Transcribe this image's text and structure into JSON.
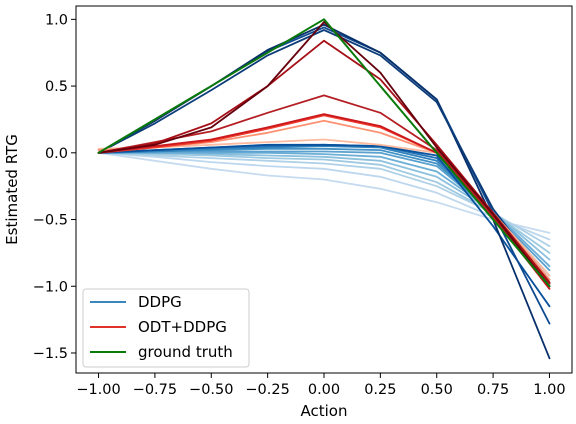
{
  "chart_data": {
    "type": "line",
    "xlabel": "Action",
    "ylabel": "Estimated RTG",
    "xlim": [
      -1.1,
      1.1
    ],
    "ylim": [
      -1.65,
      1.1
    ],
    "xticks": [
      -1.0,
      -0.75,
      -0.5,
      -0.25,
      0.0,
      0.25,
      0.5,
      0.75,
      1.0
    ],
    "xtick_labels": [
      "−1.00",
      "−0.75",
      "−0.50",
      "−0.25",
      "0.00",
      "0.25",
      "0.50",
      "0.75",
      "1.00"
    ],
    "yticks": [
      -1.5,
      -1.0,
      -0.5,
      0.0,
      0.5,
      1.0
    ],
    "ytick_labels": [
      "−1.5",
      "−1.0",
      "−0.5",
      "0.0",
      "0.5",
      "1.0"
    ],
    "grid": false,
    "legend": {
      "position": "lower-left",
      "entries": [
        {
          "label": "DDPG",
          "color": "#3a87c0"
        },
        {
          "label": "ODT+DDPG",
          "color": "#e0322a"
        },
        {
          "label": "ground truth",
          "color": "#0a7a0a"
        }
      ]
    },
    "series": [
      {
        "group": "DDPG",
        "color": "#c6dbef",
        "x": [
          -1.0,
          -0.75,
          -0.5,
          -0.25,
          0.0,
          0.25,
          0.5,
          0.75,
          1.0
        ],
        "y": [
          0.0,
          -0.06,
          -0.12,
          -0.17,
          -0.2,
          -0.27,
          -0.37,
          -0.5,
          -0.6
        ]
      },
      {
        "group": "DDPG",
        "color": "#bdd7ee",
        "x": [
          -1.0,
          -0.75,
          -0.5,
          -0.25,
          0.0,
          0.25,
          0.5,
          0.75,
          1.0
        ],
        "y": [
          0.0,
          -0.03,
          -0.07,
          -0.1,
          -0.12,
          -0.18,
          -0.3,
          -0.48,
          -0.65
        ]
      },
      {
        "group": "DDPG",
        "color": "#afd1e7",
        "x": [
          -1.0,
          -0.75,
          -0.5,
          -0.25,
          0.0,
          0.25,
          0.5,
          0.75,
          1.0
        ],
        "y": [
          0.0,
          -0.02,
          -0.04,
          -0.06,
          -0.08,
          -0.12,
          -0.25,
          -0.45,
          -0.7
        ]
      },
      {
        "group": "DDPG",
        "color": "#9ecae1",
        "x": [
          -1.0,
          -0.75,
          -0.5,
          -0.25,
          0.0,
          0.25,
          0.5,
          0.75,
          1.0
        ],
        "y": [
          0.0,
          -0.01,
          -0.02,
          -0.04,
          -0.05,
          -0.09,
          -0.22,
          -0.45,
          -0.75
        ]
      },
      {
        "group": "DDPG",
        "color": "#8cc0dd",
        "x": [
          -1.0,
          -0.75,
          -0.5,
          -0.25,
          0.0,
          0.25,
          0.5,
          0.75,
          1.0
        ],
        "y": [
          0.0,
          0.0,
          -0.01,
          -0.02,
          -0.03,
          -0.06,
          -0.18,
          -0.44,
          -0.8
        ]
      },
      {
        "group": "DDPG",
        "color": "#6baed6",
        "x": [
          -1.0,
          -0.75,
          -0.5,
          -0.25,
          0.0,
          0.25,
          0.5,
          0.75,
          1.0
        ],
        "y": [
          0.0,
          0.0,
          0.0,
          0.0,
          -0.01,
          -0.03,
          -0.14,
          -0.44,
          -0.85
        ]
      },
      {
        "group": "DDPG",
        "color": "#5aa1cf",
        "x": [
          -1.0,
          -0.75,
          -0.5,
          -0.25,
          0.0,
          0.25,
          0.5,
          0.75,
          1.0
        ],
        "y": [
          0.0,
          0.01,
          0.01,
          0.01,
          0.01,
          0.0,
          -0.1,
          -0.45,
          -0.88
        ]
      },
      {
        "group": "DDPG",
        "color": "#4292c6",
        "x": [
          -1.0,
          -0.75,
          -0.5,
          -0.25,
          0.0,
          0.25,
          0.5,
          0.75,
          1.0
        ],
        "y": [
          0.0,
          0.01,
          0.02,
          0.03,
          0.03,
          0.02,
          -0.08,
          -0.45,
          -0.92
        ]
      },
      {
        "group": "DDPG",
        "color": "#3182bd",
        "x": [
          -1.0,
          -0.75,
          -0.5,
          -0.25,
          0.0,
          0.25,
          0.5,
          0.75,
          1.0
        ],
        "y": [
          0.0,
          0.01,
          0.03,
          0.04,
          0.05,
          0.04,
          -0.06,
          -0.45,
          -0.95
        ]
      },
      {
        "group": "DDPG",
        "color": "#2171b5",
        "x": [
          -1.0,
          -0.75,
          -0.5,
          -0.25,
          0.0,
          0.25,
          0.5,
          0.75,
          1.0
        ],
        "y": [
          0.0,
          0.02,
          0.04,
          0.05,
          0.06,
          0.05,
          -0.04,
          -0.45,
          -1.0
        ]
      },
      {
        "group": "DDPG",
        "color": "#08519c",
        "x": [
          -1.0,
          -0.75,
          -0.5,
          -0.25,
          0.0,
          0.25,
          0.5,
          0.75,
          1.0
        ],
        "y": [
          0.0,
          0.02,
          0.04,
          0.06,
          0.06,
          0.05,
          -0.02,
          -0.55,
          -1.15
        ]
      },
      {
        "group": "DDPG",
        "color": "#0d4a8f",
        "x": [
          -1.0,
          -0.75,
          -0.5,
          -0.25,
          0.0,
          0.25,
          0.5,
          0.75,
          1.0
        ],
        "y": [
          0.0,
          0.25,
          0.5,
          0.76,
          0.94,
          0.75,
          0.4,
          -0.45,
          -1.28
        ]
      },
      {
        "group": "DDPG",
        "color": "#08306b",
        "x": [
          -1.0,
          -0.75,
          -0.5,
          -0.25,
          0.0,
          0.25,
          0.5,
          0.75,
          1.0
        ],
        "y": [
          0.0,
          0.24,
          0.5,
          0.77,
          0.96,
          0.75,
          0.4,
          -0.5,
          -1.54
        ]
      },
      {
        "group": "DDPG",
        "color": "#0c3d7a",
        "x": [
          -1.0,
          -0.75,
          -0.5,
          -0.25,
          0.0,
          0.25,
          0.5,
          0.75,
          1.0
        ],
        "y": [
          0.0,
          0.22,
          0.47,
          0.73,
          0.92,
          0.73,
          0.38,
          -0.42,
          -0.98
        ]
      },
      {
        "group": "ODT+DDPG",
        "color": "#fcbba1",
        "x": [
          -1.0,
          -0.75,
          -0.5,
          -0.25,
          0.0,
          0.25,
          0.5,
          0.75,
          1.0
        ],
        "y": [
          0.03,
          0.04,
          0.06,
          0.08,
          0.1,
          0.06,
          0.0,
          -0.45,
          -0.92
        ]
      },
      {
        "group": "ODT+DDPG",
        "color": "#fc9272",
        "x": [
          -1.0,
          -0.75,
          -0.5,
          -0.25,
          0.0,
          0.25,
          0.5,
          0.75,
          1.0
        ],
        "y": [
          0.02,
          0.04,
          0.08,
          0.15,
          0.24,
          0.15,
          0.0,
          -0.45,
          -0.95
        ]
      },
      {
        "group": "ODT+DDPG",
        "color": "#ef3b2c",
        "x": [
          -1.0,
          -0.75,
          -0.5,
          -0.25,
          0.0,
          0.25,
          0.5,
          0.75,
          1.0
        ],
        "y": [
          0.0,
          0.04,
          0.09,
          0.18,
          0.28,
          0.19,
          0.0,
          -0.47,
          -1.0
        ]
      },
      {
        "group": "ODT+DDPG",
        "color": "#cb181d",
        "x": [
          -1.0,
          -0.75,
          -0.5,
          -0.25,
          0.0,
          0.25,
          0.5,
          0.75,
          1.0
        ],
        "y": [
          0.0,
          0.05,
          0.1,
          0.19,
          0.29,
          0.2,
          0.0,
          -0.48,
          -1.02
        ]
      },
      {
        "group": "ODT+DDPG",
        "color": "#b51f24",
        "x": [
          -1.0,
          -0.75,
          -0.5,
          -0.25,
          0.0,
          0.25,
          0.5,
          0.75,
          1.0
        ],
        "y": [
          0.0,
          0.08,
          0.16,
          0.3,
          0.43,
          0.3,
          0.02,
          -0.47,
          -0.98
        ]
      },
      {
        "group": "ODT+DDPG",
        "color": "#a50f15",
        "x": [
          -1.0,
          -0.75,
          -0.5,
          -0.25,
          0.0,
          0.25,
          0.5,
          0.75,
          1.0
        ],
        "y": [
          0.0,
          0.07,
          0.22,
          0.5,
          0.84,
          0.55,
          0.06,
          -0.45,
          -0.97
        ]
      },
      {
        "group": "ODT+DDPG",
        "color": "#67000d",
        "x": [
          -1.0,
          -0.75,
          -0.5,
          -0.25,
          0.0,
          0.25,
          0.5,
          0.75,
          1.0
        ],
        "y": [
          0.0,
          0.06,
          0.19,
          0.5,
          0.98,
          0.6,
          0.04,
          -0.46,
          -1.0
        ]
      },
      {
        "group": "ground truth",
        "color": "#0a7a0a",
        "x": [
          -1.0,
          0.0,
          0.5,
          1.0
        ],
        "y": [
          0.0,
          1.0,
          0.0,
          -1.0
        ]
      }
    ]
  }
}
